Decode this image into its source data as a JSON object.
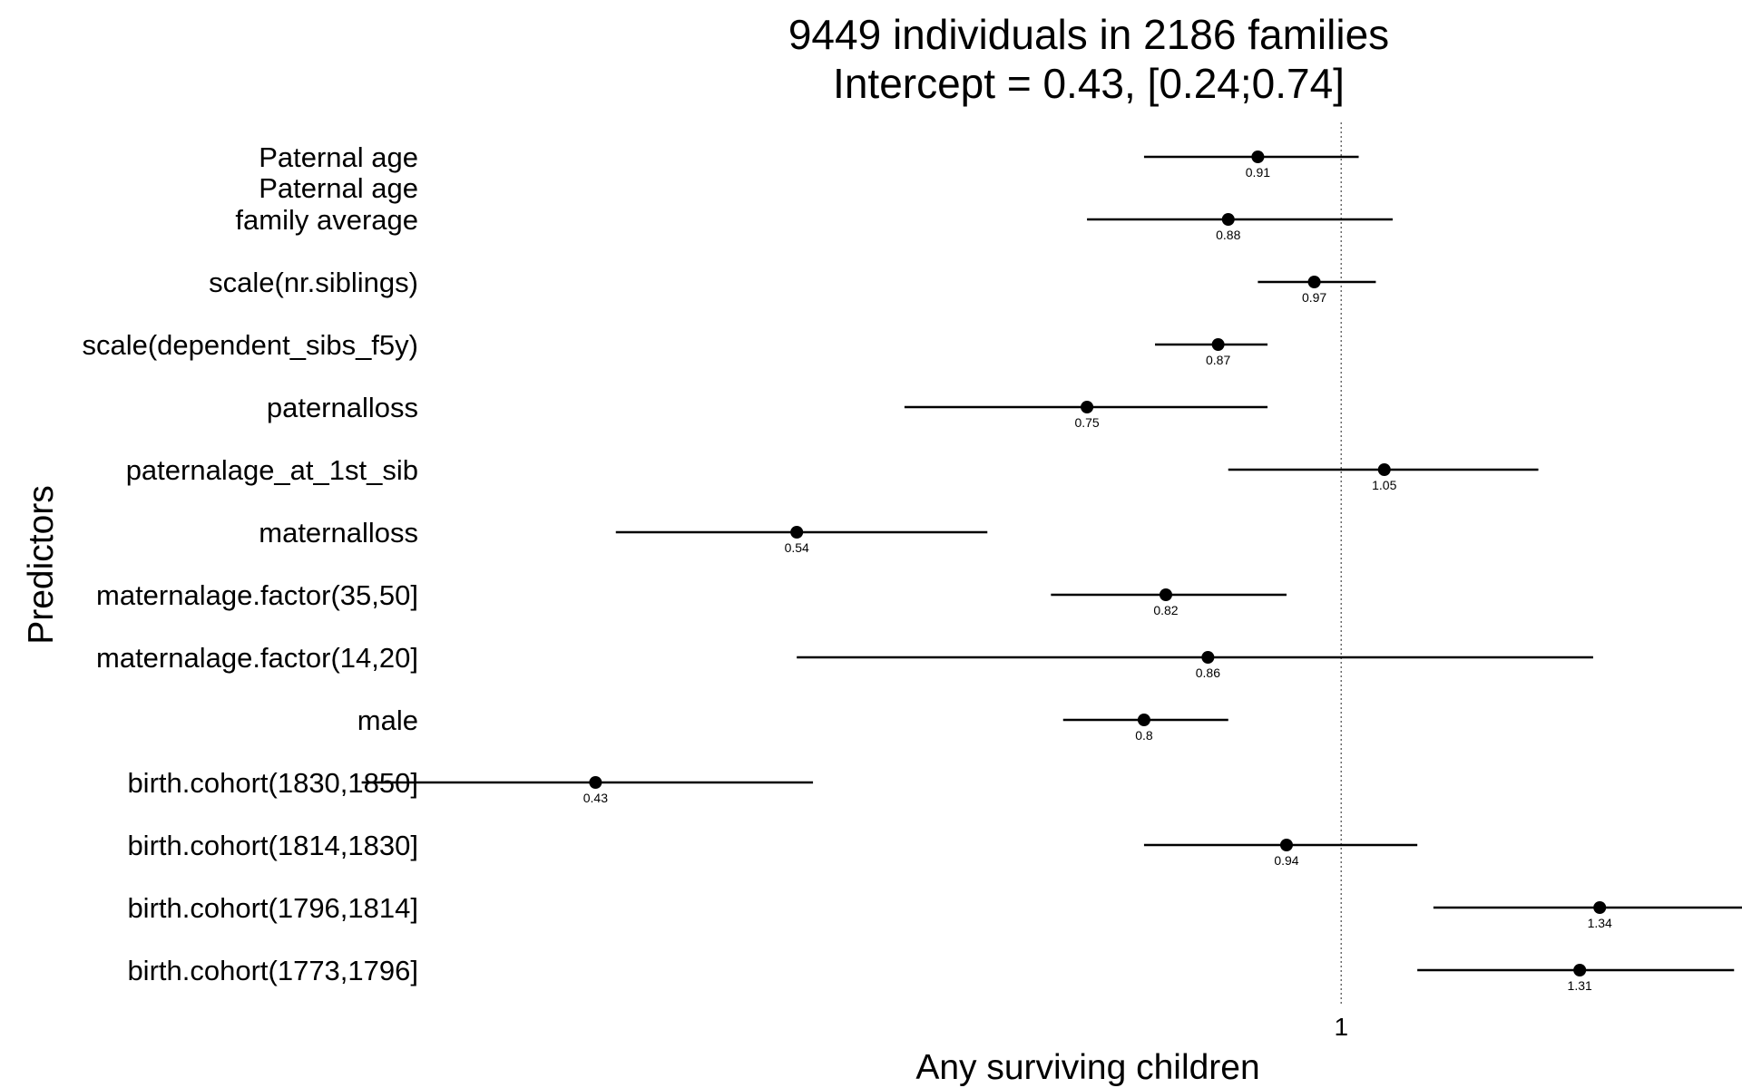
{
  "chart_data": {
    "type": "forest",
    "title": [
      "9449 individuals in 2186 families",
      "Intercept = 0.43, [0.24;0.74]"
    ],
    "xlabel": "Any surviving children",
    "ylabel": "Predictors",
    "x_scale": "log",
    "x_ticks": [
      {
        "value": 1,
        "label": "1"
      }
    ],
    "reference_line": 1,
    "xlim": [
      0.38,
      1.48
    ],
    "rows": [
      {
        "label": [
          "Paternal age"
        ],
        "estimate": 0.91,
        "ci": [
          0.8,
          1.02
        ],
        "value_label": "0.91"
      },
      {
        "label": [
          "Paternal age",
          "family average"
        ],
        "estimate": 0.88,
        "ci": [
          0.75,
          1.06
        ],
        "value_label": "0.88"
      },
      {
        "label": [
          "scale(nr.siblings)"
        ],
        "estimate": 0.97,
        "ci": [
          0.91,
          1.04
        ],
        "value_label": "0.97"
      },
      {
        "label": [
          "scale(dependent_sibs_f5y)"
        ],
        "estimate": 0.87,
        "ci": [
          0.81,
          0.92
        ],
        "value_label": "0.87"
      },
      {
        "label": [
          "paternalloss"
        ],
        "estimate": 0.75,
        "ci": [
          0.61,
          0.92
        ],
        "value_label": "0.75"
      },
      {
        "label": [
          "paternalage_at_1st_sib"
        ],
        "estimate": 1.05,
        "ci": [
          0.88,
          1.25
        ],
        "value_label": "1.05"
      },
      {
        "label": [
          "maternalloss"
        ],
        "estimate": 0.54,
        "ci": [
          0.44,
          0.67
        ],
        "value_label": "0.54"
      },
      {
        "label": [
          "maternalage.factor(35,50]"
        ],
        "estimate": 0.82,
        "ci": [
          0.72,
          0.94
        ],
        "value_label": "0.82"
      },
      {
        "label": [
          "maternalage.factor(14,20]"
        ],
        "estimate": 0.86,
        "ci": [
          0.54,
          1.33
        ],
        "value_label": "0.86"
      },
      {
        "label": [
          "male"
        ],
        "estimate": 0.8,
        "ci": [
          0.73,
          0.88
        ],
        "value_label": "0.8"
      },
      {
        "label": [
          "birth.cohort(1830,1850]"
        ],
        "estimate": 0.43,
        "ci": [
          0.33,
          0.55
        ],
        "value_label": "0.43"
      },
      {
        "label": [
          "birth.cohort(1814,1830]"
        ],
        "estimate": 0.94,
        "ci": [
          0.8,
          1.09
        ],
        "value_label": "0.94"
      },
      {
        "label": [
          "birth.cohort(1796,1814]"
        ],
        "estimate": 1.34,
        "ci": [
          1.11,
          1.59
        ],
        "value_label": "1.34"
      },
      {
        "label": [
          "birth.cohort(1773,1796]"
        ],
        "estimate": 1.31,
        "ci": [
          1.09,
          1.56
        ],
        "value_label": "1.31"
      }
    ]
  }
}
